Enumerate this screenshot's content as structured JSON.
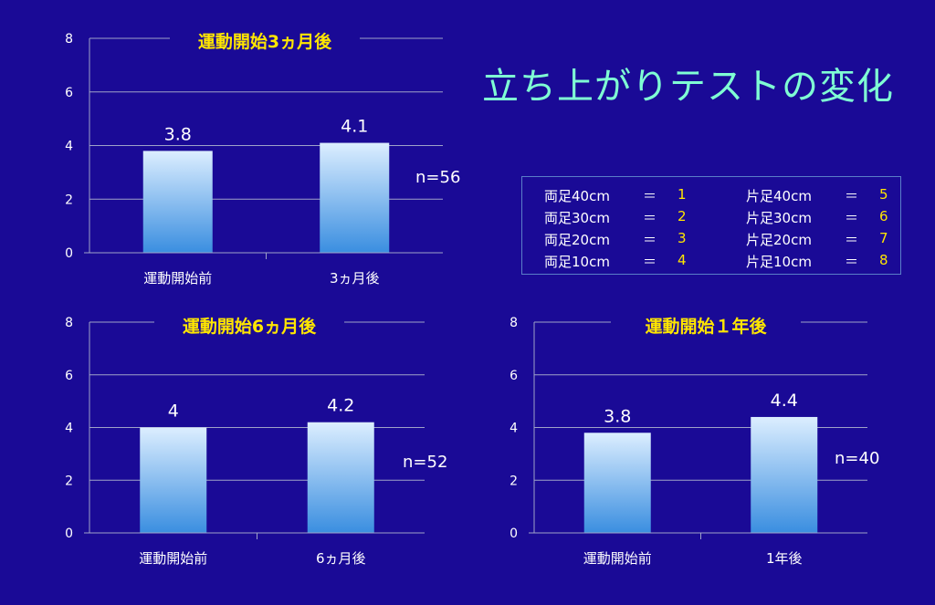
{
  "title": "立ち上がりテストの変化",
  "legend": {
    "left": [
      {
        "label": "両足40cm",
        "eq": "＝",
        "value": "1"
      },
      {
        "label": "両足30cm",
        "eq": "＝",
        "value": "2"
      },
      {
        "label": "両足20cm",
        "eq": "＝",
        "value": "3"
      },
      {
        "label": "両足10cm",
        "eq": "＝",
        "value": "4"
      }
    ],
    "right": [
      {
        "label": "片足40cm",
        "eq": "＝",
        "value": "5"
      },
      {
        "label": "片足30cm",
        "eq": "＝",
        "value": "6"
      },
      {
        "label": "片足20cm",
        "eq": "＝",
        "value": "7"
      },
      {
        "label": "片足10cm",
        "eq": "＝",
        "value": "8"
      }
    ]
  },
  "colors": {
    "background": "#1a0a96",
    "title": "#7fffd4",
    "chart_title": "#ffe600",
    "bar_top": "#dceeff",
    "bar_bottom": "#3a8ee0",
    "gridline": "#9fa3c8"
  },
  "chart_data": [
    {
      "type": "bar",
      "title": "運動開始3ヵ月後",
      "categories": [
        "運動開始前",
        "3ヵ月後"
      ],
      "values": [
        3.8,
        4.1
      ],
      "data_labels": [
        "3.8",
        "4.1"
      ],
      "ylim": [
        0,
        8
      ],
      "yticks": [
        0,
        2,
        4,
        6,
        8
      ],
      "annotation": "n=56",
      "grid": true
    },
    {
      "type": "bar",
      "title": "運動開始6ヵ月後",
      "categories": [
        "運動開始前",
        "6ヵ月後"
      ],
      "values": [
        4,
        4.2
      ],
      "data_labels": [
        "4",
        "4.2"
      ],
      "ylim": [
        0,
        8
      ],
      "yticks": [
        0,
        2,
        4,
        6,
        8
      ],
      "annotation": "n=52",
      "grid": true
    },
    {
      "type": "bar",
      "title": "運動開始１年後",
      "categories": [
        "運動開始前",
        "1年後"
      ],
      "values": [
        3.8,
        4.4
      ],
      "data_labels": [
        "3.8",
        "4.4"
      ],
      "ylim": [
        0,
        8
      ],
      "yticks": [
        0,
        2,
        4,
        6,
        8
      ],
      "annotation": "n=40",
      "grid": true
    }
  ]
}
